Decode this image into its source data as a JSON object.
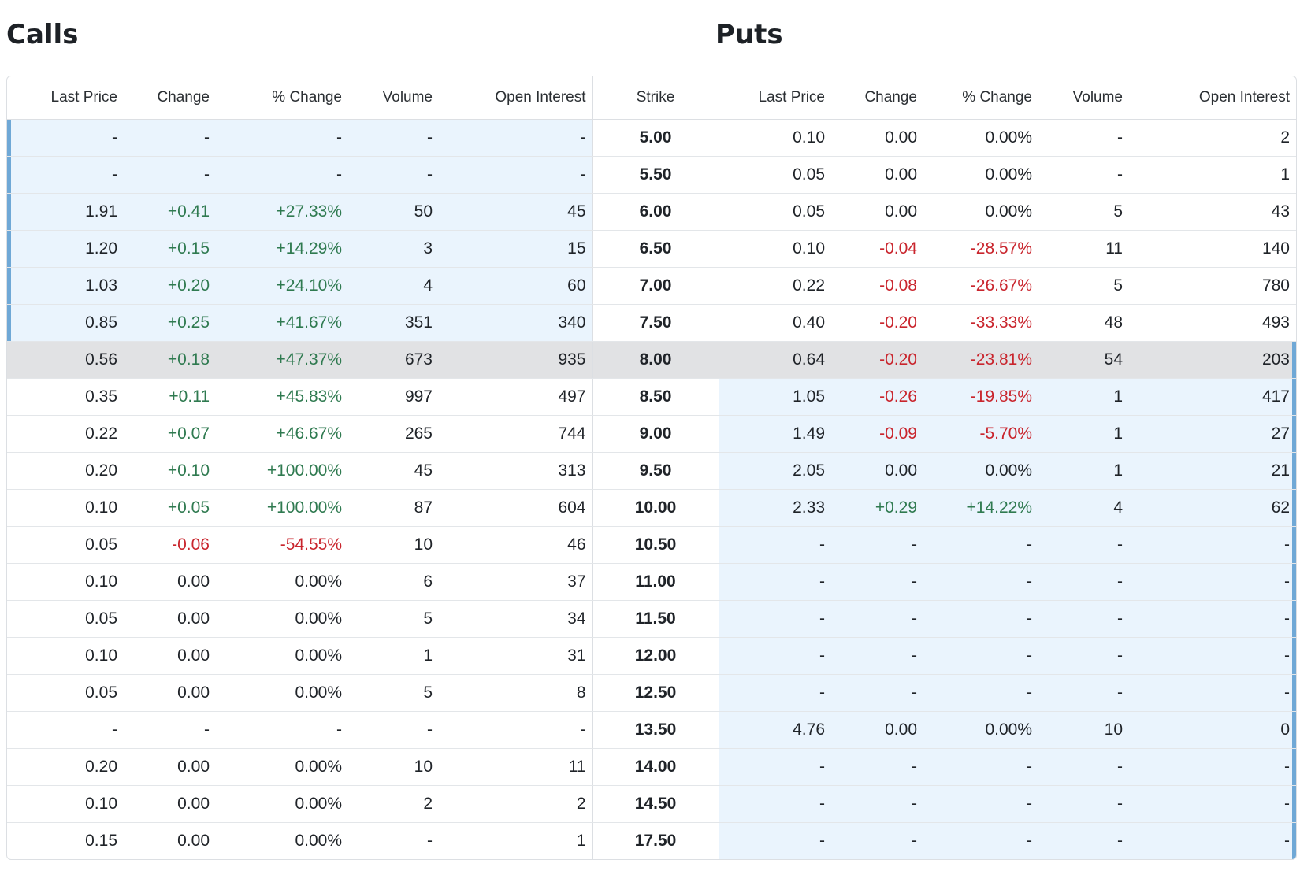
{
  "calls_title": "Calls",
  "puts_title": "Puts",
  "headers": {
    "calls": [
      "Last Price",
      "Change",
      "% Change",
      "Volume",
      "Open Interest"
    ],
    "strike": "Strike",
    "puts": [
      "Last Price",
      "Change",
      "% Change",
      "Volume",
      "Open Interest"
    ]
  },
  "colors": {
    "positive": "#2f7a50",
    "negative": "#c9252d",
    "in_the_money": "#eaf4fd",
    "at_the_money": "#e1e2e4",
    "itm_border": "#6fa8d6"
  },
  "rows": [
    {
      "strike": "5.00",
      "calls": [
        "-",
        "-",
        "-",
        "-",
        "-"
      ],
      "puts": [
        "0.10",
        "0.00",
        "0.00%",
        "-",
        "2"
      ],
      "calls_itm": true,
      "puts_itm": false,
      "atm": false
    },
    {
      "strike": "5.50",
      "calls": [
        "-",
        "-",
        "-",
        "-",
        "-"
      ],
      "puts": [
        "0.05",
        "0.00",
        "0.00%",
        "-",
        "1"
      ],
      "calls_itm": true,
      "puts_itm": false,
      "atm": false
    },
    {
      "strike": "6.00",
      "calls": [
        "1.91",
        "+0.41",
        "+27.33%",
        "50",
        "45"
      ],
      "puts": [
        "0.05",
        "0.00",
        "0.00%",
        "5",
        "43"
      ],
      "calls_itm": true,
      "puts_itm": false,
      "atm": false
    },
    {
      "strike": "6.50",
      "calls": [
        "1.20",
        "+0.15",
        "+14.29%",
        "3",
        "15"
      ],
      "puts": [
        "0.10",
        "-0.04",
        "-28.57%",
        "11",
        "140"
      ],
      "calls_itm": true,
      "puts_itm": false,
      "atm": false
    },
    {
      "strike": "7.00",
      "calls": [
        "1.03",
        "+0.20",
        "+24.10%",
        "4",
        "60"
      ],
      "puts": [
        "0.22",
        "-0.08",
        "-26.67%",
        "5",
        "780"
      ],
      "calls_itm": true,
      "puts_itm": false,
      "atm": false
    },
    {
      "strike": "7.50",
      "calls": [
        "0.85",
        "+0.25",
        "+41.67%",
        "351",
        "340"
      ],
      "puts": [
        "0.40",
        "-0.20",
        "-33.33%",
        "48",
        "493"
      ],
      "calls_itm": true,
      "puts_itm": false,
      "atm": false
    },
    {
      "strike": "8.00",
      "calls": [
        "0.56",
        "+0.18",
        "+47.37%",
        "673",
        "935"
      ],
      "puts": [
        "0.64",
        "-0.20",
        "-23.81%",
        "54",
        "203"
      ],
      "calls_itm": false,
      "puts_itm": false,
      "atm": true
    },
    {
      "strike": "8.50",
      "calls": [
        "0.35",
        "+0.11",
        "+45.83%",
        "997",
        "497"
      ],
      "puts": [
        "1.05",
        "-0.26",
        "-19.85%",
        "1",
        "417"
      ],
      "calls_itm": false,
      "puts_itm": true,
      "atm": false
    },
    {
      "strike": "9.00",
      "calls": [
        "0.22",
        "+0.07",
        "+46.67%",
        "265",
        "744"
      ],
      "puts": [
        "1.49",
        "-0.09",
        "-5.70%",
        "1",
        "27"
      ],
      "calls_itm": false,
      "puts_itm": true,
      "atm": false
    },
    {
      "strike": "9.50",
      "calls": [
        "0.20",
        "+0.10",
        "+100.00%",
        "45",
        "313"
      ],
      "puts": [
        "2.05",
        "0.00",
        "0.00%",
        "1",
        "21"
      ],
      "calls_itm": false,
      "puts_itm": true,
      "atm": false
    },
    {
      "strike": "10.00",
      "calls": [
        "0.10",
        "+0.05",
        "+100.00%",
        "87",
        "604"
      ],
      "puts": [
        "2.33",
        "+0.29",
        "+14.22%",
        "4",
        "62"
      ],
      "calls_itm": false,
      "puts_itm": true,
      "atm": false
    },
    {
      "strike": "10.50",
      "calls": [
        "0.05",
        "-0.06",
        "-54.55%",
        "10",
        "46"
      ],
      "puts": [
        "-",
        "-",
        "-",
        "-",
        "-"
      ],
      "calls_itm": false,
      "puts_itm": true,
      "atm": false
    },
    {
      "strike": "11.00",
      "calls": [
        "0.10",
        "0.00",
        "0.00%",
        "6",
        "37"
      ],
      "puts": [
        "-",
        "-",
        "-",
        "-",
        "-"
      ],
      "calls_itm": false,
      "puts_itm": true,
      "atm": false
    },
    {
      "strike": "11.50",
      "calls": [
        "0.05",
        "0.00",
        "0.00%",
        "5",
        "34"
      ],
      "puts": [
        "-",
        "-",
        "-",
        "-",
        "-"
      ],
      "calls_itm": false,
      "puts_itm": true,
      "atm": false
    },
    {
      "strike": "12.00",
      "calls": [
        "0.10",
        "0.00",
        "0.00%",
        "1",
        "31"
      ],
      "puts": [
        "-",
        "-",
        "-",
        "-",
        "-"
      ],
      "calls_itm": false,
      "puts_itm": true,
      "atm": false
    },
    {
      "strike": "12.50",
      "calls": [
        "0.05",
        "0.00",
        "0.00%",
        "5",
        "8"
      ],
      "puts": [
        "-",
        "-",
        "-",
        "-",
        "-"
      ],
      "calls_itm": false,
      "puts_itm": true,
      "atm": false
    },
    {
      "strike": "13.50",
      "calls": [
        "-",
        "-",
        "-",
        "-",
        "-"
      ],
      "puts": [
        "4.76",
        "0.00",
        "0.00%",
        "10",
        "0"
      ],
      "calls_itm": false,
      "puts_itm": true,
      "atm": false
    },
    {
      "strike": "14.00",
      "calls": [
        "0.20",
        "0.00",
        "0.00%",
        "10",
        "11"
      ],
      "puts": [
        "-",
        "-",
        "-",
        "-",
        "-"
      ],
      "calls_itm": false,
      "puts_itm": true,
      "atm": false
    },
    {
      "strike": "14.50",
      "calls": [
        "0.10",
        "0.00",
        "0.00%",
        "2",
        "2"
      ],
      "puts": [
        "-",
        "-",
        "-",
        "-",
        "-"
      ],
      "calls_itm": false,
      "puts_itm": true,
      "atm": false
    },
    {
      "strike": "17.50",
      "calls": [
        "0.15",
        "0.00",
        "0.00%",
        "-",
        "1"
      ],
      "puts": [
        "-",
        "-",
        "-",
        "-",
        "-"
      ],
      "calls_itm": false,
      "puts_itm": true,
      "atm": false
    }
  ]
}
